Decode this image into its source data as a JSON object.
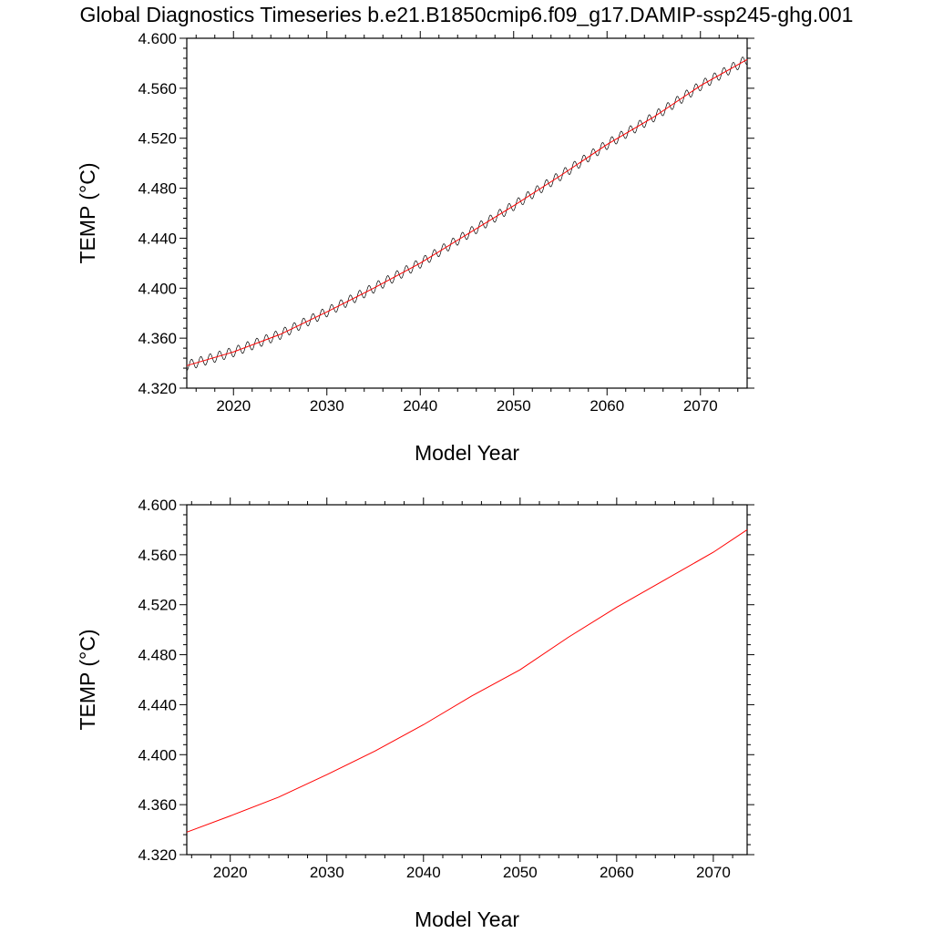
{
  "figure": {
    "title": "Global Diagnostics Timeseries b.e21.B1850cmip6.f09_g17.DAMIP-ssp245-ghg.001"
  },
  "colors": {
    "monthly_line": "#000000",
    "annual_line": "#ff0000",
    "axis": "#000000",
    "background": "#ffffff"
  },
  "chart_data": [
    {
      "type": "line",
      "title": "",
      "xlabel": "Model Year",
      "ylabel": "TEMP (°C)",
      "xlim": [
        2015,
        2075
      ],
      "ylim": [
        4.32,
        4.6
      ],
      "xticks": [
        2020,
        2030,
        2040,
        2050,
        2060,
        2070
      ],
      "yticks": [
        "4.320",
        "4.360",
        "4.400",
        "4.440",
        "4.480",
        "4.520",
        "4.560",
        "4.600"
      ],
      "grid": false,
      "legend": "none",
      "series": [
        {
          "kind": "monthly",
          "color": "#000000",
          "seasonal_amplitude": 0.004,
          "x": [
            2015,
            2020,
            2025,
            2030,
            2035,
            2040,
            2045,
            2050,
            2055,
            2060,
            2065,
            2070,
            2075
          ],
          "values": [
            4.338,
            4.349,
            4.363,
            4.381,
            4.4,
            4.42,
            4.443,
            4.466,
            4.49,
            4.515,
            4.537,
            4.562,
            4.583
          ]
        },
        {
          "kind": "annual",
          "color": "#ff0000",
          "x": [
            2015,
            2020,
            2025,
            2030,
            2035,
            2040,
            2045,
            2050,
            2055,
            2060,
            2065,
            2070,
            2075
          ],
          "values": [
            4.338,
            4.349,
            4.363,
            4.381,
            4.4,
            4.42,
            4.443,
            4.466,
            4.49,
            4.515,
            4.537,
            4.562,
            4.583
          ]
        }
      ]
    },
    {
      "type": "line",
      "title": "",
      "xlabel": "Model Year",
      "ylabel": "TEMP (°C)",
      "xlim": [
        2015.5,
        2073.5
      ],
      "ylim": [
        4.32,
        4.6
      ],
      "xticks": [
        2020,
        2030,
        2040,
        2050,
        2060,
        2070
      ],
      "yticks": [
        "4.320",
        "4.360",
        "4.400",
        "4.440",
        "4.480",
        "4.520",
        "4.560",
        "4.600"
      ],
      "grid": false,
      "legend": "none",
      "series": [
        {
          "kind": "annual",
          "color": "#ff0000",
          "x": [
            2015.5,
            2020,
            2025,
            2030,
            2035,
            2040,
            2045,
            2050,
            2055,
            2060,
            2065,
            2070,
            2073.5
          ],
          "values": [
            4.338,
            4.351,
            4.366,
            4.384,
            4.403,
            4.424,
            4.447,
            4.468,
            4.494,
            4.518,
            4.54,
            4.562,
            4.58
          ]
        }
      ]
    }
  ]
}
